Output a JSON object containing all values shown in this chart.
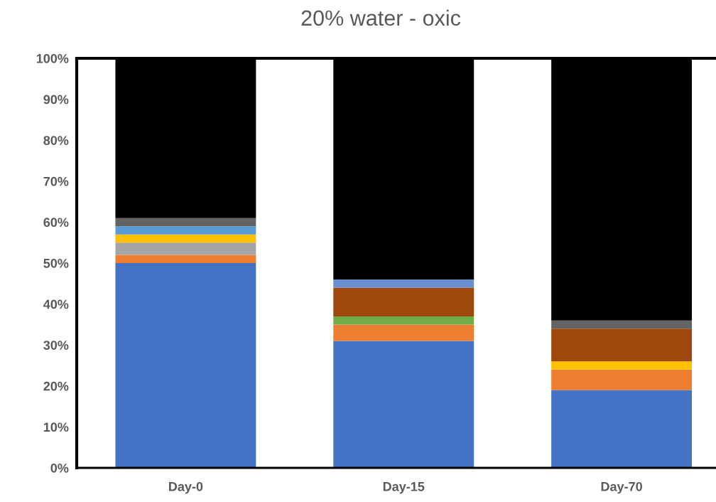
{
  "chart_data": {
    "type": "bar",
    "title": "20% water - oxic",
    "stacked": true,
    "categories": [
      "Day-0",
      "Day-15",
      "Day-70"
    ],
    "series": [
      {
        "color": "#4472c4",
        "values": [
          50,
          31,
          19
        ]
      },
      {
        "color": "#ed7d31",
        "values": [
          2,
          4,
          5
        ]
      },
      {
        "color": "#a5a5a5",
        "values": [
          3,
          null,
          null
        ]
      },
      {
        "color": "#ffc000",
        "values": [
          2,
          null,
          2
        ]
      },
      {
        "color": "#5b9bd5",
        "values": [
          2,
          null,
          null
        ]
      },
      {
        "color": "#70ad47",
        "values": [
          null,
          2,
          null
        ]
      },
      {
        "color": "#9e480e",
        "values": [
          null,
          7,
          8
        ]
      },
      {
        "color": "#636363",
        "values": [
          2,
          null,
          2
        ]
      },
      {
        "color": "#698ed0",
        "values": [
          null,
          2,
          null
        ]
      },
      {
        "color": "#000000",
        "values": [
          39,
          54,
          64
        ]
      }
    ],
    "ylim": [
      0,
      100
    ],
    "yticks": [
      {
        "value": 0,
        "label": "0%"
      },
      {
        "value": 10,
        "label": "10%"
      },
      {
        "value": 20,
        "label": "20%"
      },
      {
        "value": 30,
        "label": "30%"
      },
      {
        "value": 40,
        "label": "40%"
      },
      {
        "value": 50,
        "label": "50%"
      },
      {
        "value": 60,
        "label": "60%"
      },
      {
        "value": 70,
        "label": "70%"
      },
      {
        "value": 80,
        "label": "80%"
      },
      {
        "value": 90,
        "label": "90%"
      },
      {
        "value": 100,
        "label": "100%"
      }
    ],
    "grid": false,
    "legend": false
  }
}
